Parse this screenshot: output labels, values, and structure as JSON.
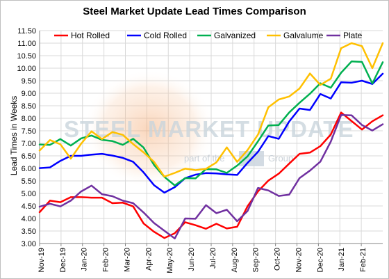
{
  "title": "Steel Market Update Lead Times Comparison",
  "watermark": {
    "main": "STEEL MARKET UPDATE",
    "sub_left": "part of the",
    "sub_right": "Group"
  },
  "chart_data": {
    "type": "line",
    "title": "Steel Market Update Lead Times Comparison",
    "xlabel": "",
    "ylabel": "Lead Times in Weeks",
    "ylim": [
      3.0,
      11.5
    ],
    "y_ticks": [
      "3.00",
      "3.50",
      "4.00",
      "4.50",
      "5.00",
      "5.50",
      "6.00",
      "6.50",
      "7.00",
      "7.50",
      "8.00",
      "8.50",
      "9.00",
      "9.50",
      "10.00",
      "10.50",
      "11.00",
      "11.50"
    ],
    "x_tick_labels": [
      "Nov-19",
      "Dec-19",
      "Jan-20",
      "Feb-20",
      "Mar-20",
      "Apr-20",
      "May-20",
      "Jun-20",
      "Jul-20",
      "Aug-20",
      "Sep-20",
      "Oct-20",
      "Nov-20",
      "Dec-20",
      "Jan-21",
      "Feb-21"
    ],
    "grid": true,
    "legend_position": "top",
    "series": [
      {
        "name": "Hot Rolled",
        "color": "#ff0000",
        "values": [
          4.25,
          4.71,
          4.65,
          4.85,
          4.85,
          4.83,
          4.83,
          4.61,
          4.63,
          4.48,
          3.8,
          3.47,
          3.22,
          3.41,
          3.85,
          3.73,
          3.59,
          3.79,
          3.6,
          3.67,
          4.49,
          5.08,
          5.51,
          5.79,
          6.19,
          6.58,
          6.63,
          6.89,
          7.35,
          8.23,
          7.89,
          7.55,
          7.88,
          8.12
        ]
      },
      {
        "name": "Cold Rolled",
        "color": "#0000ff",
        "values": [
          6.01,
          6.04,
          6.3,
          6.5,
          6.5,
          6.55,
          6.58,
          6.51,
          6.42,
          6.26,
          5.84,
          5.33,
          5.03,
          5.25,
          5.61,
          5.75,
          5.81,
          5.8,
          5.76,
          5.74,
          6.22,
          6.66,
          7.29,
          7.18,
          7.87,
          8.39,
          8.33,
          8.97,
          8.79,
          9.44,
          9.42,
          9.5,
          9.37,
          9.78
        ]
      },
      {
        "name": "Galvanized",
        "color": "#00b050",
        "values": [
          6.95,
          6.94,
          7.17,
          6.91,
          7.2,
          7.31,
          7.14,
          7.09,
          6.94,
          7.18,
          6.83,
          6.14,
          5.66,
          5.32,
          5.61,
          5.6,
          5.97,
          5.96,
          5.82,
          6.11,
          6.48,
          7.08,
          7.71,
          7.73,
          8.23,
          8.62,
          8.98,
          9.4,
          9.22,
          9.82,
          10.27,
          10.25,
          9.39,
          10.24
        ]
      },
      {
        "name": "Galvalume",
        "color": "#ffc000",
        "values": [
          6.71,
          7.13,
          6.96,
          6.39,
          6.99,
          7.48,
          7.17,
          7.45,
          7.34,
          6.97,
          6.64,
          6.26,
          5.67,
          5.82,
          5.99,
          5.93,
          5.98,
          6.24,
          6.84,
          6.26,
          6.73,
          7.35,
          8.44,
          8.75,
          8.87,
          9.19,
          9.79,
          9.33,
          9.58,
          10.8,
          11.0,
          10.88,
          10.0,
          11.0
        ]
      },
      {
        "name": "Plate",
        "color": "#7030a0",
        "values": [
          4.47,
          4.59,
          4.48,
          4.71,
          5.08,
          5.31,
          4.97,
          4.89,
          4.71,
          4.61,
          4.24,
          3.82,
          3.51,
          3.2,
          4.0,
          3.99,
          4.53,
          4.21,
          4.35,
          3.89,
          4.3,
          5.22,
          5.12,
          4.9,
          4.95,
          5.61,
          5.91,
          6.27,
          7.07,
          8.13,
          8.12,
          7.73,
          7.51,
          7.76
        ]
      }
    ]
  }
}
